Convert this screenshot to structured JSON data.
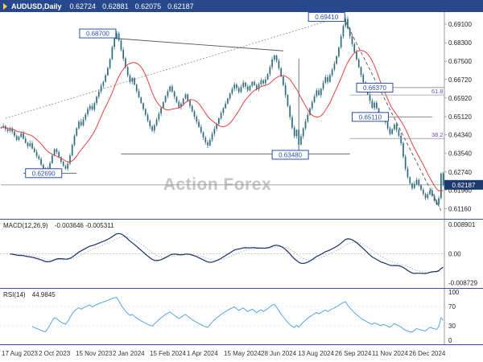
{
  "title_bar": {
    "symbol": "AUDUSD,Daily",
    "open": "0.62724",
    "high": "0.62881",
    "low": "0.62075",
    "close": "0.62187"
  },
  "watermark": "Action Forex",
  "macd": {
    "label": "MACD(12,26,9)",
    "values_text": "-0.003646 -0.005311",
    "axis": [
      "0.008901",
      "0.00",
      "-0.008729"
    ]
  },
  "rsi": {
    "label": "RSI(14)",
    "value_text": "44.9845",
    "axis": [
      "100",
      "70",
      "30",
      "0"
    ]
  },
  "x_labels": [
    "17 Aug 2023",
    "2 Oct 2023",
    "15 Nov 2023",
    "2 Jan 2024",
    "15 Feb 2024",
    "1 Apr 2024",
    "15 May 2024",
    "28 Jun 2024",
    "13 Aug 2024",
    "26 Sep 2024",
    "11 Nov 2024",
    "26 Dec 2024"
  ],
  "y_axis_ticks": [
    "0.69100",
    "0.68300",
    "0.67500",
    "0.66720",
    "0.65920",
    "0.65120",
    "0.64340",
    "0.63540",
    "0.62740",
    "0.61960",
    "0.61160"
  ],
  "colors": {
    "titlebar": "#27488c",
    "candle": "#2e6b7d",
    "ma": "#e84040",
    "macd_line": "#14306b",
    "macd_signal": "#b0b0b0",
    "rsi_line": "#54a7e3",
    "flag": "#2b50a8",
    "fib_label": "#7b49c0",
    "current_price_bg": "#1d3a70",
    "grid": "#c8c8c8"
  },
  "chart_data": {
    "type": "candlestick",
    "symbol": "AUDUSD",
    "timeframe": "Daily",
    "title": "AUDUSD Daily with MACD(12,26,9) and RSI(14)",
    "ohlc_display": {
      "open": 0.62724,
      "high": 0.62881,
      "low": 0.62075,
      "close": 0.62187
    },
    "ylim": [
      0.609,
      0.6955
    ],
    "x_range": [
      "17 Aug 2023",
      "Jan 2025"
    ],
    "closes": [
      0.6465,
      0.6472,
      0.6458,
      0.645,
      0.6462,
      0.6448,
      0.643,
      0.6412,
      0.6425,
      0.644,
      0.6418,
      0.64,
      0.6385,
      0.6398,
      0.6375,
      0.636,
      0.6342,
      0.633,
      0.6305,
      0.6285,
      0.6271,
      0.629,
      0.6312,
      0.6345,
      0.6372,
      0.636,
      0.6338,
      0.6318,
      0.63,
      0.6288,
      0.631,
      0.6345,
      0.639,
      0.643,
      0.6462,
      0.649,
      0.6475,
      0.65,
      0.6522,
      0.6545,
      0.6558,
      0.6542,
      0.657,
      0.6598,
      0.662,
      0.6645,
      0.6662,
      0.669,
      0.6722,
      0.676,
      0.6812,
      0.6848,
      0.687,
      0.684,
      0.68,
      0.6762,
      0.6725,
      0.669,
      0.6662,
      0.6678,
      0.665,
      0.6622,
      0.6595,
      0.657,
      0.6545,
      0.652,
      0.6495,
      0.647,
      0.6452,
      0.6475,
      0.65,
      0.6525,
      0.655,
      0.6575,
      0.66,
      0.6622,
      0.6642,
      0.662,
      0.6598,
      0.6575,
      0.6552,
      0.6568,
      0.659,
      0.6608,
      0.6582,
      0.6558,
      0.6535,
      0.6512,
      0.649,
      0.6468,
      0.6445,
      0.6422,
      0.6402,
      0.6388,
      0.6412,
      0.6438,
      0.646,
      0.6482,
      0.6505,
      0.6528,
      0.6548,
      0.6568,
      0.659,
      0.6612,
      0.6632,
      0.665,
      0.6635,
      0.6618,
      0.664,
      0.6658,
      0.6642,
      0.6625,
      0.6645,
      0.6662,
      0.6648,
      0.663,
      0.6652,
      0.6668,
      0.6655,
      0.6672,
      0.6695,
      0.6725,
      0.6758,
      0.6775,
      0.6752,
      0.672,
      0.6685,
      0.6648,
      0.6605,
      0.6558,
      0.651,
      0.6465,
      0.6428,
      0.6455,
      0.6392,
      0.6428,
      0.6462,
      0.6492,
      0.652,
      0.6548,
      0.6575,
      0.66,
      0.6625,
      0.6605,
      0.6632,
      0.6658,
      0.6682,
      0.6662,
      0.669,
      0.6715,
      0.674,
      0.6772,
      0.681,
      0.6858,
      0.6902,
      0.6932,
      0.6892,
      0.6858,
      0.6825,
      0.679,
      0.6758,
      0.6725,
      0.6692,
      0.666,
      0.6637,
      0.6608,
      0.658,
      0.655,
      0.6572,
      0.6548,
      0.6522,
      0.6498,
      0.6515,
      0.6488,
      0.6462,
      0.6438,
      0.6458,
      0.6478,
      0.6455,
      0.643,
      0.6398,
      0.634,
      0.6288,
      0.6252,
      0.6225,
      0.6205,
      0.6222,
      0.624,
      0.6218,
      0.6198,
      0.618,
      0.6162,
      0.6178,
      0.6195,
      0.6172,
      0.615,
      0.6135,
      0.6162,
      0.6268,
      0.6219
    ],
    "extremes": [
      {
        "i": 134,
        "low": 0.6348
      },
      {
        "i": 155,
        "high": 0.6941
      },
      {
        "i": 196,
        "low": 0.6131
      },
      {
        "i": 198,
        "high": 0.6272
      }
    ],
    "price_flags": [
      {
        "text": "0.68700",
        "p": 0.687,
        "i": 52,
        "align": "left"
      },
      {
        "text": "0.69410",
        "p": 0.6941,
        "i": 155,
        "align": "left"
      },
      {
        "text": "0.66370",
        "p": 0.6637,
        "i": 160,
        "align": "right"
      },
      {
        "text": "0.65110",
        "p": 0.6511,
        "i": 158,
        "align": "right"
      },
      {
        "text": "0.63480",
        "p": 0.6348,
        "i": 122,
        "align": "right"
      },
      {
        "text": "0.62690",
        "p": 0.6269,
        "i": 11,
        "align": "right"
      }
    ],
    "current_price_flag": {
      "text": "0.62187",
      "p": 0.62187
    },
    "hlines": [
      {
        "p": 0.6352,
        "i1": 54,
        "i2": 157,
        "color": "#555",
        "w": 0.9
      },
      {
        "p": 0.6269,
        "i1": 10,
        "i2": 34,
        "color": "#555",
        "w": 0.9
      },
      {
        "p": 0.6637,
        "i1": 176,
        "i2": 200,
        "color": "#777",
        "w": 0.8
      },
      {
        "p": 0.6511,
        "i1": 174,
        "i2": 194,
        "color": "#777",
        "w": 0.8
      },
      {
        "p": 0.62187,
        "i1": 0,
        "i2": 200,
        "color": "#9a9a9a",
        "w": 0.8
      }
    ],
    "trendlines": [
      {
        "i1": 2,
        "p1": 0.6505,
        "i2": 156,
        "p2": 0.695,
        "dash": "2,2",
        "color": "#8a8a8a",
        "w": 0.8
      },
      {
        "i1": 51,
        "p1": 0.6849,
        "i2": 127,
        "p2": 0.6795,
        "dash": "",
        "color": "#555",
        "w": 0.9
      },
      {
        "i1": 154,
        "p1": 0.6941,
        "i2": 198,
        "p2": 0.6108,
        "dash": "4,3",
        "color": "#555",
        "w": 0.9
      }
    ],
    "vlines": [
      {
        "i": 134,
        "p1": 0.6348,
        "p2": 0.6762,
        "color": "#555",
        "w": 0.8
      }
    ],
    "fib_levels": [
      {
        "label": "61.8",
        "price": 0.6605,
        "i1": 157
      },
      {
        "label": "38.2",
        "price": 0.6418,
        "i1": 157
      }
    ],
    "indicators": {
      "macd": {
        "fast": 12,
        "slow": 26,
        "signal": 9,
        "display_values": [
          -0.003646,
          -0.005311
        ],
        "axis_range": [
          -0.008729,
          0.008901
        ]
      },
      "rsi": {
        "period": 14,
        "value": 44.9845,
        "axis_range": [
          0,
          100
        ]
      }
    }
  }
}
